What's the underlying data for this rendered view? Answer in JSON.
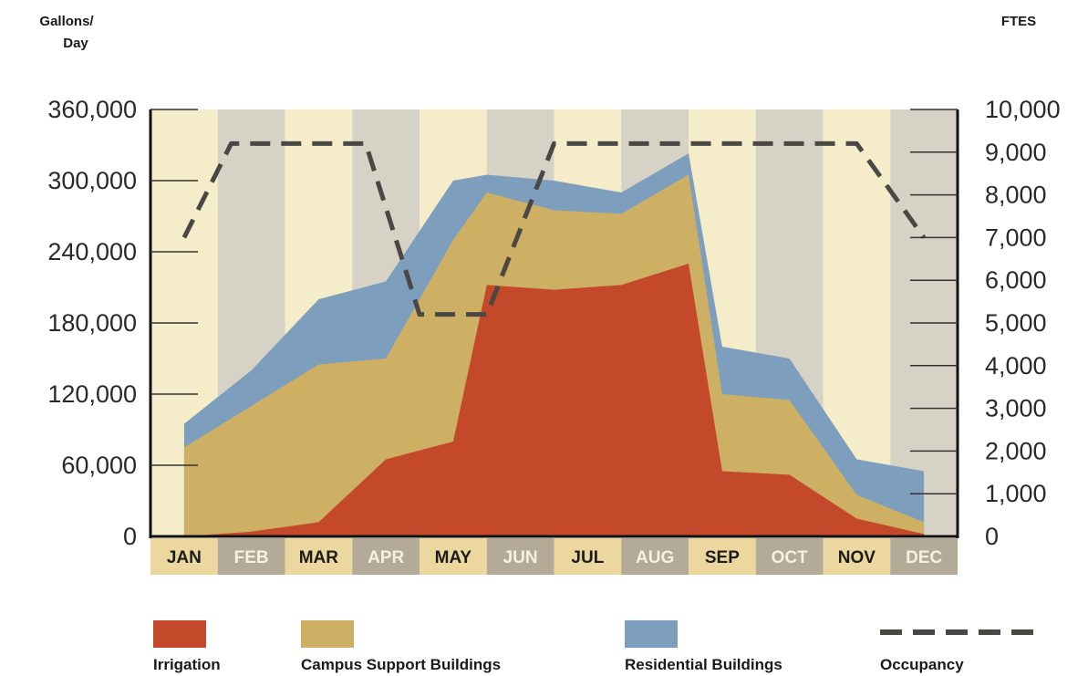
{
  "chart_data": {
    "type": "area",
    "title": "",
    "left_axis": {
      "unit_label_line1": "Gallons/",
      "unit_label_line2": "Day",
      "ylim": [
        0,
        360000
      ],
      "ticks": [
        0,
        60000,
        120000,
        180000,
        240000,
        300000,
        360000
      ],
      "tick_labels": [
        "0",
        "60,000",
        "120,000",
        "180,000",
        "240,000",
        "300,000",
        "360,000"
      ]
    },
    "right_axis": {
      "unit_label": "FTES",
      "ylim": [
        0,
        10000
      ],
      "ticks": [
        0,
        1000,
        2000,
        3000,
        4000,
        5000,
        6000,
        7000,
        8000,
        9000,
        10000
      ],
      "tick_labels": [
        "0",
        "1,000",
        "2,000",
        "3,000",
        "4,000",
        "5,000",
        "6,000",
        "7,000",
        "8,000",
        "9,000",
        "10,000"
      ]
    },
    "categories": [
      "JAN",
      "FEB",
      "MAR",
      "APR",
      "MAY",
      "JUN",
      "JUL",
      "AUG",
      "SEP",
      "OCT",
      "NOV",
      "DEC"
    ],
    "stacked": true,
    "series": [
      {
        "name": "Irrigation",
        "color": "#c4492a",
        "axis": "left",
        "points": [
          [
            0.0,
            0
          ],
          [
            1.0,
            4000
          ],
          [
            2.0,
            12000
          ],
          [
            3.0,
            65000
          ],
          [
            4.0,
            80000
          ],
          [
            4.5,
            212000
          ],
          [
            5.5,
            208000
          ],
          [
            6.5,
            212000
          ],
          [
            7.5,
            230000
          ],
          [
            8.0,
            55000
          ],
          [
            9.0,
            52000
          ],
          [
            10.0,
            15000
          ],
          [
            11.0,
            2000
          ]
        ]
      },
      {
        "name": "Campus Support Buildings",
        "color": "#cdb063",
        "axis": "left",
        "points": [
          [
            0.0,
            75000
          ],
          [
            1.0,
            110000
          ],
          [
            2.0,
            145000
          ],
          [
            3.0,
            150000
          ],
          [
            4.0,
            250000
          ],
          [
            4.5,
            290000
          ],
          [
            5.5,
            275000
          ],
          [
            6.5,
            272000
          ],
          [
            7.5,
            305000
          ],
          [
            8.0,
            120000
          ],
          [
            9.0,
            115000
          ],
          [
            10.0,
            35000
          ],
          [
            11.0,
            12000
          ]
        ]
      },
      {
        "name": "Residential Buildings",
        "color": "#7d9fbd",
        "axis": "left",
        "points": [
          [
            0.0,
            95000
          ],
          [
            1.0,
            140000
          ],
          [
            2.0,
            200000
          ],
          [
            3.0,
            215000
          ],
          [
            4.0,
            300000
          ],
          [
            4.5,
            305000
          ],
          [
            5.5,
            300000
          ],
          [
            6.5,
            290000
          ],
          [
            7.5,
            323000
          ],
          [
            8.0,
            160000
          ],
          [
            9.0,
            150000
          ],
          [
            10.0,
            65000
          ],
          [
            11.0,
            55000
          ]
        ]
      },
      {
        "name": "Occupancy",
        "color": "#4a4744",
        "axis": "right",
        "style": "dashed",
        "points": [
          [
            0.0,
            7000
          ],
          [
            0.7,
            9200
          ],
          [
            2.7,
            9200
          ],
          [
            3.5,
            5200
          ],
          [
            4.5,
            5200
          ],
          [
            5.5,
            9200
          ],
          [
            6.5,
            9200
          ],
          [
            7.5,
            9200
          ],
          [
            8.5,
            9200
          ],
          [
            9.0,
            9200
          ],
          [
            10.0,
            9200
          ],
          [
            11.0,
            7000
          ]
        ]
      }
    ],
    "grid": false,
    "legend": "bottom"
  }
}
